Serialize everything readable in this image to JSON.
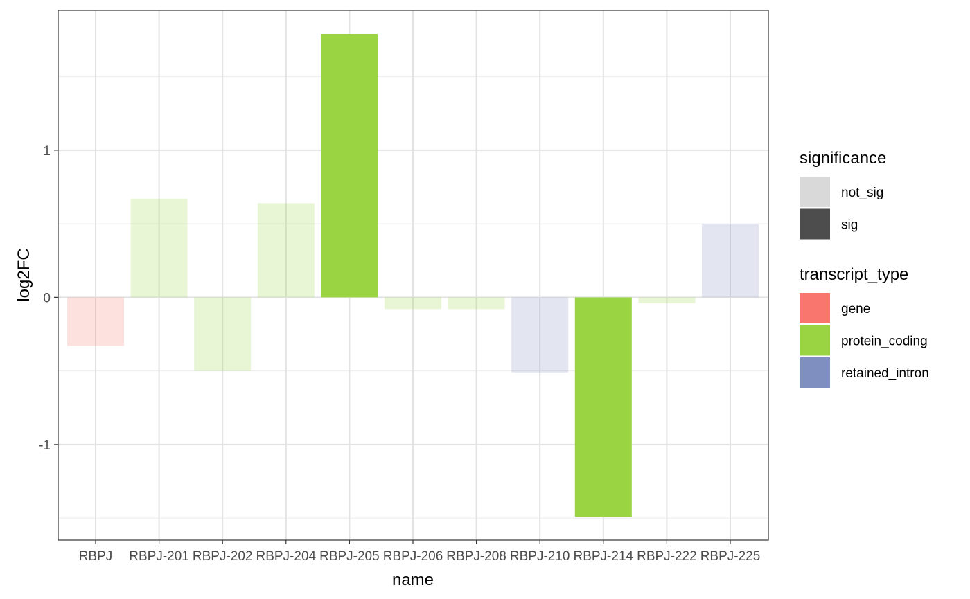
{
  "chart_data": {
    "type": "bar",
    "categories": [
      "RBPJ",
      "RBPJ-201",
      "RBPJ-202",
      "RBPJ-204",
      "RBPJ-205",
      "RBPJ-206",
      "RBPJ-208",
      "RBPJ-210",
      "RBPJ-214",
      "RBPJ-222",
      "RBPJ-225"
    ],
    "values": [
      -0.33,
      0.67,
      -0.5,
      0.64,
      1.79,
      -0.08,
      -0.08,
      -0.51,
      -1.49,
      -0.04,
      0.5
    ],
    "transcript_type": [
      "gene",
      "protein_coding",
      "protein_coding",
      "protein_coding",
      "protein_coding",
      "protein_coding",
      "protein_coding",
      "retained_intron",
      "protein_coding",
      "protein_coding",
      "retained_intron"
    ],
    "significance": [
      "not_sig",
      "not_sig",
      "not_sig",
      "not_sig",
      "sig",
      "not_sig",
      "not_sig",
      "not_sig",
      "sig",
      "not_sig",
      "not_sig"
    ],
    "xlabel": "name",
    "ylabel": "log2FC",
    "ylim": [
      -1.65,
      1.95
    ],
    "yticks": [
      "-1",
      "0",
      "1"
    ],
    "ytick_values": [
      -1,
      0,
      1
    ],
    "grid": true,
    "legend_position": "right",
    "legends": [
      {
        "title": "significance",
        "items": [
          {
            "label": "not_sig",
            "color": "#d9d9d9"
          },
          {
            "label": "sig",
            "color": "#4d4d4d"
          }
        ]
      },
      {
        "title": "transcript_type",
        "items": [
          {
            "label": "gene",
            "color": "#f8766d"
          },
          {
            "label": "protein_coding",
            "color": "#9ad443"
          },
          {
            "label": "retained_intron",
            "color": "#7f8fc0"
          }
        ]
      }
    ],
    "type_colors": {
      "gene": "#f8766d",
      "protein_coding": "#9ad443",
      "retained_intron": "#7f8fc0"
    },
    "significance_alpha": {
      "not_sig": 0.22,
      "sig": 1.0
    }
  }
}
